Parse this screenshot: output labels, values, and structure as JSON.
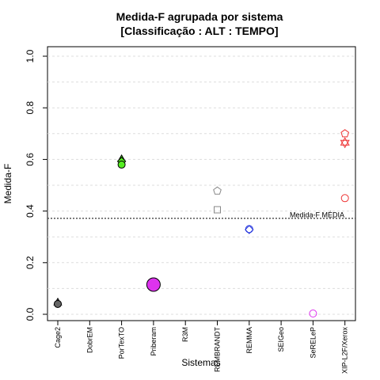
{
  "chart_data": {
    "type": "scatter",
    "title_line1": "Medida-F agrupada por sistema",
    "title_line2": "[Classificação : ALT : TEMPO]",
    "xlabel": "Sistemas",
    "ylabel": "Medida-F",
    "ylim": [
      0,
      1
    ],
    "y_ticks": [
      "0.0",
      "0.2",
      "0.4",
      "0.6",
      "0.8",
      "1.0"
    ],
    "grid": true,
    "categories": [
      "Cage2",
      "DobrEM",
      "PorTexTO",
      "Priberam",
      "R3M",
      "REMBRANDT",
      "REMMA",
      "SEIGeo",
      "SeRELeP",
      "XIP-L2F/Xerox"
    ],
    "reference_line": {
      "label": "Medida-F MÉDIA",
      "value": 0.372
    },
    "points": [
      {
        "category": "Cage2",
        "value": 0.045,
        "shape": "triangle",
        "color": "#000000",
        "fill": "#666666"
      },
      {
        "category": "Cage2",
        "value": 0.04,
        "shape": "circle",
        "color": "#000000",
        "fill": "#666666"
      },
      {
        "category": "PorTexTO",
        "value": 0.6,
        "shape": "triangle",
        "color": "#000000",
        "fill": "#55ee22"
      },
      {
        "category": "PorTexTO",
        "value": 0.593,
        "shape": "diamond",
        "color": "#000000",
        "fill": "#55ee22"
      },
      {
        "category": "PorTexTO",
        "value": 0.58,
        "shape": "circle",
        "color": "#000000",
        "fill": "#55ee22"
      },
      {
        "category": "Priberam",
        "value": 0.115,
        "shape": "big-circle",
        "color": "#000000",
        "fill": "#dd33ee"
      },
      {
        "category": "REMBRANDT",
        "value": 0.478,
        "shape": "pentagon",
        "color": "#888888",
        "fill": "none"
      },
      {
        "category": "REMBRANDT",
        "value": 0.405,
        "shape": "square",
        "color": "#888888",
        "fill": "none"
      },
      {
        "category": "REMMA",
        "value": 0.33,
        "shape": "circle",
        "color": "#2233dd",
        "fill": "none"
      },
      {
        "category": "REMMA",
        "value": 0.328,
        "shape": "diamond",
        "color": "#2233dd",
        "fill": "none"
      },
      {
        "category": "SeRELeP",
        "value": 0.003,
        "shape": "circle",
        "color": "#dd33ee",
        "fill": "none"
      },
      {
        "category": "XIP-L2F/Xerox",
        "value": 0.7,
        "shape": "pentagon",
        "color": "#ee3333",
        "fill": "none"
      },
      {
        "category": "XIP-L2F/Xerox",
        "value": 0.665,
        "shape": "star",
        "color": "#ee3333",
        "fill": "none"
      },
      {
        "category": "XIP-L2F/Xerox",
        "value": 0.45,
        "shape": "circle",
        "color": "#ee3333",
        "fill": "none"
      }
    ]
  }
}
